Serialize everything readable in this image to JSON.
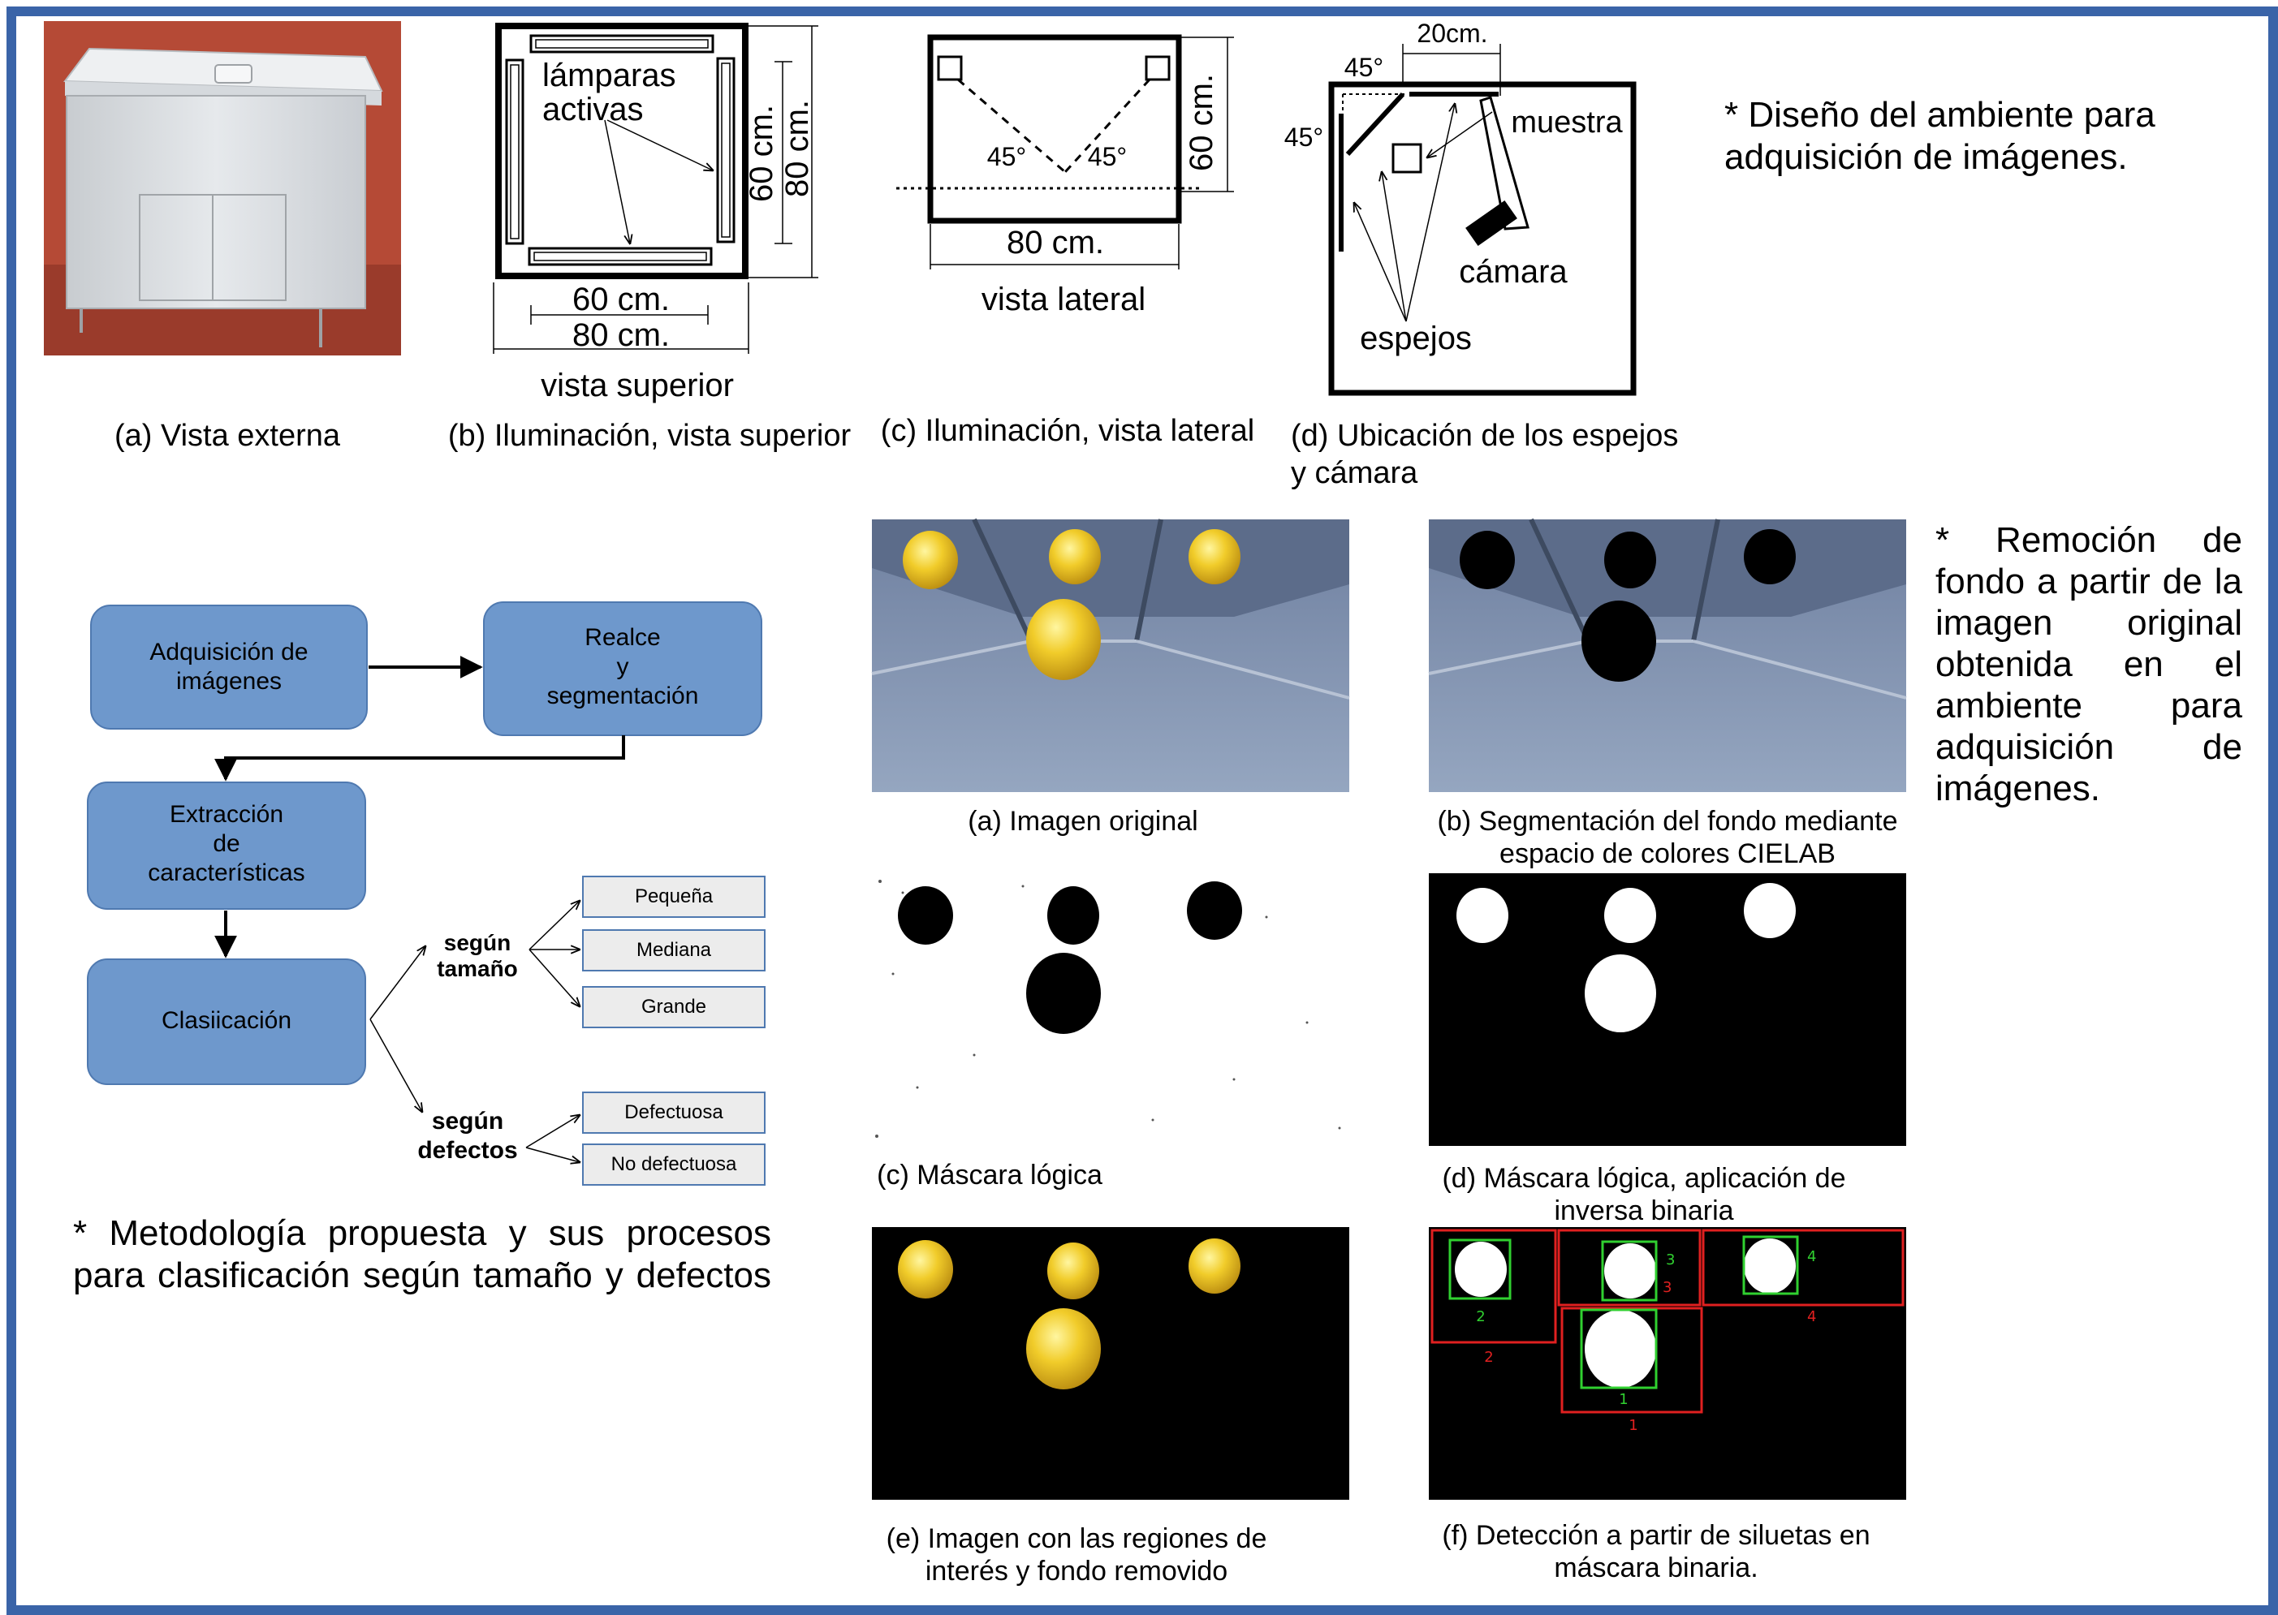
{
  "colors": {
    "frame": "#3a64a8",
    "flow_box": "#6e98cc",
    "flow_box_border": "#4f79b0",
    "class_box": "#ececec",
    "class_box_border": "#4f79b0",
    "detect_outer": "#e02020",
    "detect_inner": "#30d030",
    "floor": "#8496b2"
  },
  "section_top": {
    "note": "* Diseño del ambiente para adquisición de imágenes.",
    "panels": {
      "a": {
        "caption": "(a) Vista externa"
      },
      "b": {
        "caption": "(b) Iluminación, vista superior",
        "label_lamps": "lámparas\nactivas",
        "dim_inner_h": "60 cm.",
        "dim_outer_h": "80 cm.",
        "dim_inner_v": "60 cm.",
        "dim_outer_v": "80 cm.",
        "view_label": "vista superior"
      },
      "c": {
        "caption": "(c) Iluminación, vista lateral",
        "angle_left": "45°",
        "angle_right": "45°",
        "dim_v": "60 cm.",
        "dim_h": "80 cm.",
        "view_label": "vista lateral"
      },
      "d": {
        "caption": "(d) Ubicación de los espejos\ny cámara",
        "dim_top": "20cm.",
        "angle_top": "45°",
        "angle_left": "45°",
        "label_sample": "muestra",
        "label_camera": "cámara",
        "label_mirrors": "espejos"
      }
    }
  },
  "section_flow": {
    "note": "* Metodología propuesta y sus procesos para clasificación según tamaño y defectos",
    "boxes": {
      "acquisition": "Adquisición de\nimágenes",
      "enhance": "Realce\ny\nsegmentación",
      "extraction": "Extracción\nde\ncaracterísticas",
      "classification": "Clasiicación"
    },
    "branches": {
      "size": {
        "label": "según\ntamaño",
        "options": [
          "Pequeña",
          "Mediana",
          "Grande"
        ]
      },
      "defects": {
        "label": "según\ndefectos",
        "options": [
          "Defectuosa",
          "No defectuosa"
        ]
      }
    }
  },
  "section_removal": {
    "note": "* Remoción de fondo a partir de la imagen original obtenida en el ambiente para adquisición de imágenes.",
    "panels": {
      "a": "(a) Imagen original",
      "b": "(b) Segmentación del fondo mediante\nespacio de colores CIELAB",
      "c": "(c) Máscara lógica",
      "d": "(d) Máscara lógica, aplicación de\ninversa binaria",
      "e": "(e) Imagen con las regiones de\ninterés y fondo removido",
      "f": "(f) Detección a partir de siluetas en\nmáscara binaria."
    },
    "detections": [
      {
        "id": "1"
      },
      {
        "id": "2"
      },
      {
        "id": "3"
      },
      {
        "id": "4"
      }
    ]
  }
}
